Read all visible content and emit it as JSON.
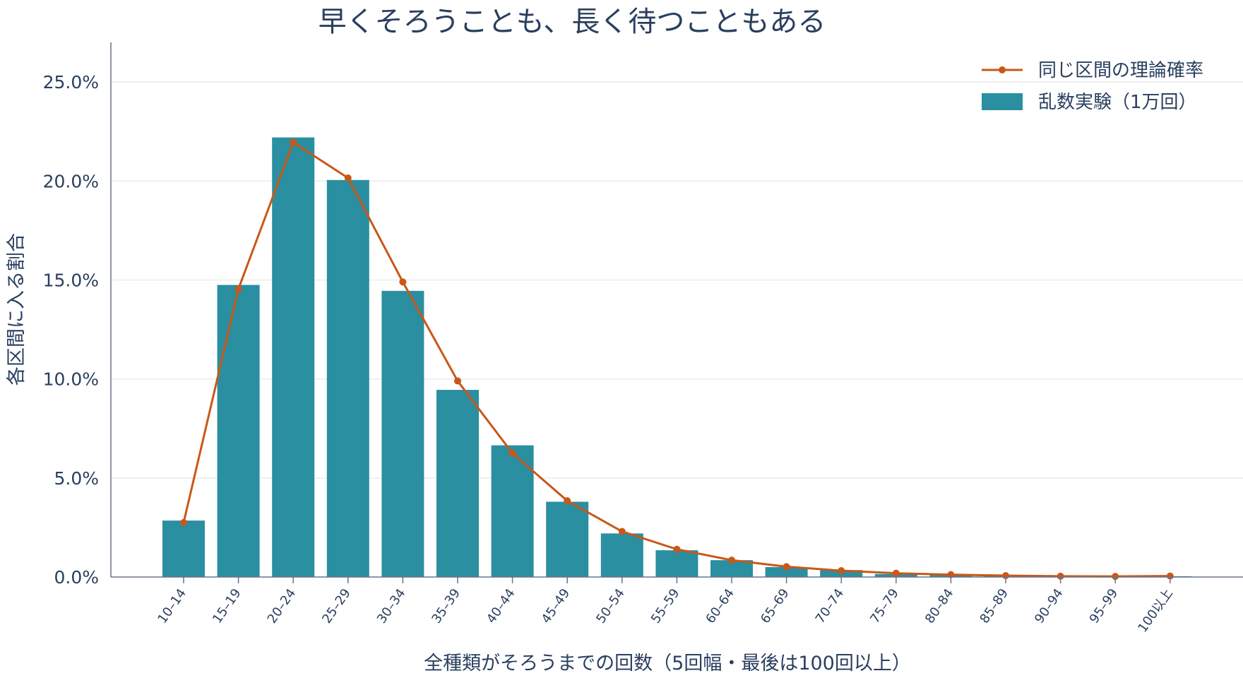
{
  "chart_data": {
    "type": "bar",
    "title": "早くそろうことも、長く待つこともある",
    "xlabel": "全種類がそろうまでの回数（5回幅・最後は100回以上）",
    "ylabel": "各区間に入る割合",
    "ylim": [
      0,
      0.27
    ],
    "yticks": [
      0,
      0.05,
      0.1,
      0.15,
      0.2,
      0.25
    ],
    "ytick_labels": [
      "0.0%",
      "5.0%",
      "10.0%",
      "15.0%",
      "20.0%",
      "25.0%"
    ],
    "grid": true,
    "legend_position": "top-right",
    "categories": [
      "10–14",
      "15–19",
      "20–24",
      "25–29",
      "30–34",
      "35–39",
      "40–44",
      "45–49",
      "50–54",
      "55–59",
      "60–64",
      "65–69",
      "70–74",
      "75–79",
      "80–84",
      "85–89",
      "90–94",
      "95–99",
      "100以上"
    ],
    "series": [
      {
        "name": "乱数実験（1万回）",
        "type": "bar",
        "color": "#2a8fa0",
        "values": [
          0.0285,
          0.1475,
          0.222,
          0.2005,
          0.1445,
          0.0945,
          0.0665,
          0.038,
          0.022,
          0.0135,
          0.0085,
          0.005,
          0.0035,
          0.0015,
          0.001,
          0.0005,
          0.0003,
          0.0002,
          0.0004
        ]
      },
      {
        "name": "同じ区間の理論確率",
        "type": "line",
        "color": "#c8581a",
        "values": [
          0.0275,
          0.1455,
          0.2195,
          0.2015,
          0.149,
          0.099,
          0.0625,
          0.0385,
          0.023,
          0.014,
          0.0085,
          0.0052,
          0.0032,
          0.0019,
          0.0012,
          0.0007,
          0.0004,
          0.0003,
          0.0005
        ]
      }
    ]
  }
}
